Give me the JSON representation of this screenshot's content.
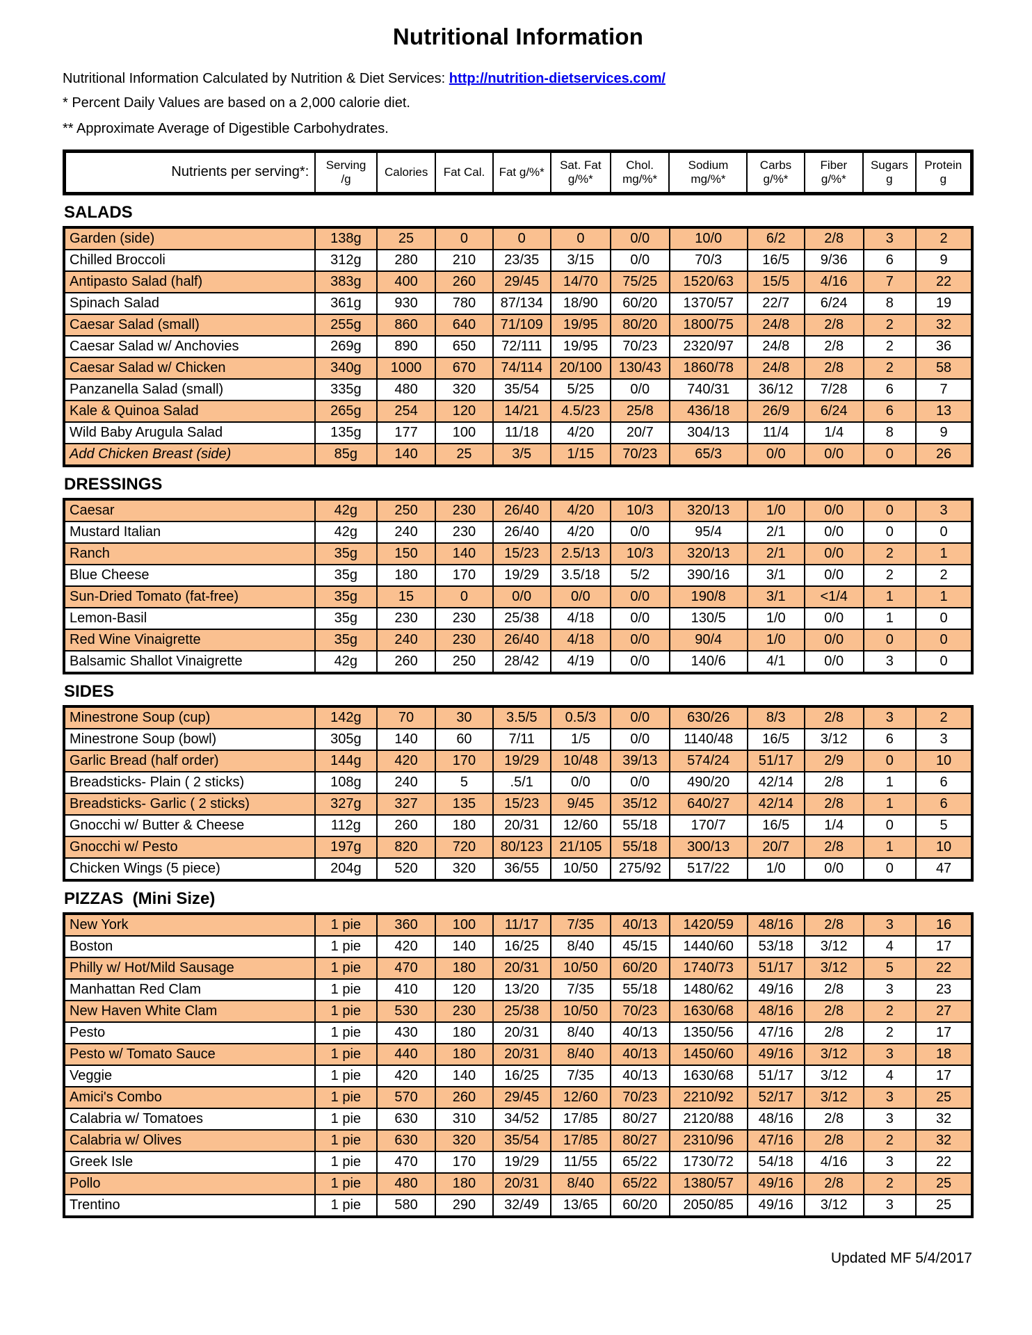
{
  "page": {
    "title": "Nutritional Information",
    "intro_prefix": "Nutritional Information Calculated by Nutrition & Diet Services: ",
    "intro_link": "http://nutrition-dietservices.com/",
    "note1": "* Percent Daily Values are based on a 2,000 calorie diet.",
    "note2": "** Approximate Average of Digestible Carbohydrates.",
    "footer": "Updated MF 5/4/2017"
  },
  "colors": {
    "row_highlight": "#FAC090",
    "link_blue": "#0000EE",
    "border": "#000000"
  },
  "table": {
    "header": [
      "Nutrients per serving*:",
      "Serving\n/g",
      "Calories",
      "Fat Cal.",
      "Fat g/%*",
      "Sat. Fat\ng/%*",
      "Chol.\nmg/%*",
      "Sodium\nmg/%*",
      "Carbs\ng/%*",
      "Fiber\ng/%*",
      "Sugars\ng",
      "Protein\ng"
    ]
  },
  "sections": [
    {
      "name": "SALADS",
      "rows": [
        {
          "label": "Garden (side)",
          "italic": false,
          "values": [
            "138g",
            "25",
            "0",
            "0",
            "0",
            "0/0",
            "10/0",
            "6/2",
            "2/8",
            "3",
            "2"
          ]
        },
        {
          "label": "Chilled Broccoli",
          "italic": false,
          "values": [
            "312g",
            "280",
            "210",
            "23/35",
            "3/15",
            "0/0",
            "70/3",
            "16/5",
            "9/36",
            "6",
            "9"
          ]
        },
        {
          "label": "Antipasto Salad (half)",
          "italic": false,
          "values": [
            "383g",
            "400",
            "260",
            "29/45",
            "14/70",
            "75/25",
            "1520/63",
            "15/5",
            "4/16",
            "7",
            "22"
          ]
        },
        {
          "label": "Spinach Salad",
          "italic": false,
          "values": [
            "361g",
            "930",
            "780",
            "87/134",
            "18/90",
            "60/20",
            "1370/57",
            "22/7",
            "6/24",
            "8",
            "19"
          ]
        },
        {
          "label": "Caesar Salad (small)",
          "italic": false,
          "values": [
            "255g",
            "860",
            "640",
            "71/109",
            "19/95",
            "80/20",
            "1800/75",
            "24/8",
            "2/8",
            "2",
            "32"
          ]
        },
        {
          "label": "Caesar Salad w/ Anchovies",
          "italic": false,
          "values": [
            "269g",
            "890",
            "650",
            "72/111",
            "19/95",
            "70/23",
            "2320/97",
            "24/8",
            "2/8",
            "2",
            "36"
          ]
        },
        {
          "label": "Caesar Salad w/ Chicken",
          "italic": false,
          "values": [
            "340g",
            "1000",
            "670",
            "74/114",
            "20/100",
            "130/43",
            "1860/78",
            "24/8",
            "2/8",
            "2",
            "58"
          ]
        },
        {
          "label": "Panzanella Salad (small)",
          "italic": false,
          "values": [
            "335g",
            "480",
            "320",
            "35/54",
            "5/25",
            "0/0",
            "740/31",
            "36/12",
            "7/28",
            "6",
            "7"
          ]
        },
        {
          "label": "Kale & Quinoa Salad",
          "italic": false,
          "values": [
            "265g",
            "254",
            "120",
            "14/21",
            "4.5/23",
            "25/8",
            "436/18",
            "26/9",
            "6/24",
            "6",
            "13"
          ]
        },
        {
          "label": "Wild Baby Arugula Salad",
          "italic": false,
          "values": [
            "135g",
            "177",
            "100",
            "11/18",
            "4/20",
            "20/7",
            "304/13",
            "11/4",
            "1/4",
            "8",
            "9"
          ]
        },
        {
          "label": "Add Chicken Breast (side)",
          "italic": true,
          "values": [
            "85g",
            "140",
            "25",
            "3/5",
            "1/15",
            "70/23",
            "65/3",
            "0/0",
            "0/0",
            "0",
            "26"
          ]
        }
      ]
    },
    {
      "name": "DRESSINGS",
      "rows": [
        {
          "label": "Caesar",
          "italic": false,
          "values": [
            "42g",
            "250",
            "230",
            "26/40",
            "4/20",
            "10/3",
            "320/13",
            "1/0",
            "0/0",
            "0",
            "3"
          ]
        },
        {
          "label": "Mustard Italian",
          "italic": false,
          "values": [
            "42g",
            "240",
            "230",
            "26/40",
            "4/20",
            "0/0",
            "95/4",
            "2/1",
            "0/0",
            "0",
            "0"
          ]
        },
        {
          "label": "Ranch",
          "italic": false,
          "values": [
            "35g",
            "150",
            "140",
            "15/23",
            "2.5/13",
            "10/3",
            "320/13",
            "2/1",
            "0/0",
            "2",
            "1"
          ]
        },
        {
          "label": "Blue Cheese",
          "italic": false,
          "values": [
            "35g",
            "180",
            "170",
            "19/29",
            "3.5/18",
            "5/2",
            "390/16",
            "3/1",
            "0/0",
            "2",
            "2"
          ]
        },
        {
          "label": "Sun-Dried Tomato (fat-free)",
          "italic": false,
          "values": [
            "35g",
            "15",
            "0",
            "0/0",
            "0/0",
            "0/0",
            "190/8",
            "3/1",
            "<1/4",
            "1",
            "1"
          ]
        },
        {
          "label": "Lemon-Basil",
          "italic": false,
          "values": [
            "35g",
            "230",
            "230",
            "25/38",
            "4/18",
            "0/0",
            "130/5",
            "1/0",
            "0/0",
            "1",
            "0"
          ]
        },
        {
          "label": "Red Wine Vinaigrette",
          "italic": false,
          "values": [
            "35g",
            "240",
            "230",
            "26/40",
            "4/18",
            "0/0",
            "90/4",
            "1/0",
            "0/0",
            "0",
            "0"
          ]
        },
        {
          "label": "Balsamic Shallot Vinaigrette",
          "italic": false,
          "values": [
            "42g",
            "260",
            "250",
            "28/42",
            "4/19",
            "0/0",
            "140/6",
            "4/1",
            "0/0",
            "3",
            "0"
          ]
        }
      ]
    },
    {
      "name": "SIDES",
      "rows": [
        {
          "label": "Minestrone Soup (cup)",
          "italic": false,
          "values": [
            "142g",
            "70",
            "30",
            "3.5/5",
            "0.5/3",
            "0/0",
            "630/26",
            "8/3",
            "2/8",
            "3",
            "2"
          ]
        },
        {
          "label": "Minestrone Soup (bowl)",
          "italic": false,
          "values": [
            "305g",
            "140",
            "60",
            "7/11",
            "1/5",
            "0/0",
            "1140/48",
            "16/5",
            "3/12",
            "6",
            "3"
          ]
        },
        {
          "label": "Garlic Bread (half order)",
          "italic": false,
          "values": [
            "144g",
            "420",
            "170",
            "19/29",
            "10/48",
            "39/13",
            "574/24",
            "51/17",
            "2/9",
            "0",
            "10"
          ]
        },
        {
          "label": "Breadsticks- Plain ( 2 sticks)",
          "italic": false,
          "values": [
            "108g",
            "240",
            "5",
            ".5/1",
            "0/0",
            "0/0",
            "490/20",
            "42/14",
            "2/8",
            "1",
            "6"
          ]
        },
        {
          "label": "Breadsticks- Garlic ( 2 sticks)",
          "italic": false,
          "values": [
            "327g",
            "327",
            "135",
            "15/23",
            "9/45",
            "35/12",
            "640/27",
            "42/14",
            "2/8",
            "1",
            "6"
          ]
        },
        {
          "label": "Gnocchi w/ Butter & Cheese",
          "italic": false,
          "values": [
            "112g",
            "260",
            "180",
            "20/31",
            "12/60",
            "55/18",
            "170/7",
            "16/5",
            "1/4",
            "0",
            "5"
          ]
        },
        {
          "label": "Gnocchi w/ Pesto",
          "italic": false,
          "values": [
            "197g",
            "820",
            "720",
            "80/123",
            "21/105",
            "55/18",
            "300/13",
            "20/7",
            "2/8",
            "1",
            "10"
          ]
        },
        {
          "label": "Chicken Wings (5 piece)",
          "italic": false,
          "values": [
            "204g",
            "520",
            "320",
            "36/55",
            "10/50",
            "275/92",
            "517/22",
            "1/0",
            "0/0",
            "0",
            "47"
          ]
        }
      ]
    },
    {
      "name": "PIZZAS  (Mini Size)",
      "rows": [
        {
          "label": "New York",
          "italic": false,
          "values": [
            "1 pie",
            "360",
            "100",
            "11/17",
            "7/35",
            "40/13",
            "1420/59",
            "48/16",
            "2/8",
            "3",
            "16"
          ]
        },
        {
          "label": "Boston",
          "italic": false,
          "values": [
            "1 pie",
            "420",
            "140",
            "16/25",
            "8/40",
            "45/15",
            "1440/60",
            "53/18",
            "3/12",
            "4",
            "17"
          ]
        },
        {
          "label": "Philly w/ Hot/Mild Sausage",
          "italic": false,
          "values": [
            "1 pie",
            "470",
            "180",
            "20/31",
            "10/50",
            "60/20",
            "1740/73",
            "51/17",
            "3/12",
            "5",
            "22"
          ]
        },
        {
          "label": "Manhattan Red Clam",
          "italic": false,
          "values": [
            "1 pie",
            "410",
            "120",
            "13/20",
            "7/35",
            "55/18",
            "1480/62",
            "49/16",
            "2/8",
            "3",
            "23"
          ]
        },
        {
          "label": "New Haven White Clam",
          "italic": false,
          "values": [
            "1 pie",
            "530",
            "230",
            "25/38",
            "10/50",
            "70/23",
            "1630/68",
            "48/16",
            "2/8",
            "2",
            "27"
          ]
        },
        {
          "label": "Pesto",
          "italic": false,
          "values": [
            "1 pie",
            "430",
            "180",
            "20/31",
            "8/40",
            "40/13",
            "1350/56",
            "47/16",
            "2/8",
            "2",
            "17"
          ]
        },
        {
          "label": "Pesto w/ Tomato Sauce",
          "italic": false,
          "values": [
            "1 pie",
            "440",
            "180",
            "20/31",
            "8/40",
            "40/13",
            "1450/60",
            "49/16",
            "3/12",
            "3",
            "18"
          ]
        },
        {
          "label": "Veggie",
          "italic": false,
          "values": [
            "1 pie",
            "420",
            "140",
            "16/25",
            "7/35",
            "40/13",
            "1630/68",
            "51/17",
            "3/12",
            "4",
            "17"
          ]
        },
        {
          "label": "Amici's Combo",
          "italic": false,
          "values": [
            "1 pie",
            "570",
            "260",
            "29/45",
            "12/60",
            "70/23",
            "2210/92",
            "52/17",
            "3/12",
            "3",
            "25"
          ]
        },
        {
          "label": "Calabria w/ Tomatoes",
          "italic": false,
          "values": [
            "1 pie",
            "630",
            "310",
            "34/52",
            "17/85",
            "80/27",
            "2120/88",
            "48/16",
            "2/8",
            "3",
            "32"
          ]
        },
        {
          "label": "Calabria w/ Olives",
          "italic": false,
          "values": [
            "1 pie",
            "630",
            "320",
            "35/54",
            "17/85",
            "80/27",
            "2310/96",
            "47/16",
            "2/8",
            "2",
            "32"
          ]
        },
        {
          "label": "Greek Isle",
          "italic": false,
          "values": [
            "1 pie",
            "470",
            "170",
            "19/29",
            "11/55",
            "65/22",
            "1730/72",
            "54/18",
            "4/16",
            "3",
            "22"
          ]
        },
        {
          "label": "Pollo",
          "italic": false,
          "values": [
            "1 pie",
            "480",
            "180",
            "20/31",
            "8/40",
            "65/22",
            "1380/57",
            "49/16",
            "2/8",
            "2",
            "25"
          ]
        },
        {
          "label": "Trentino",
          "italic": false,
          "values": [
            "1 pie",
            "580",
            "290",
            "32/49",
            "13/65",
            "60/20",
            "2050/85",
            "49/16",
            "3/12",
            "3",
            "25"
          ]
        }
      ]
    }
  ]
}
